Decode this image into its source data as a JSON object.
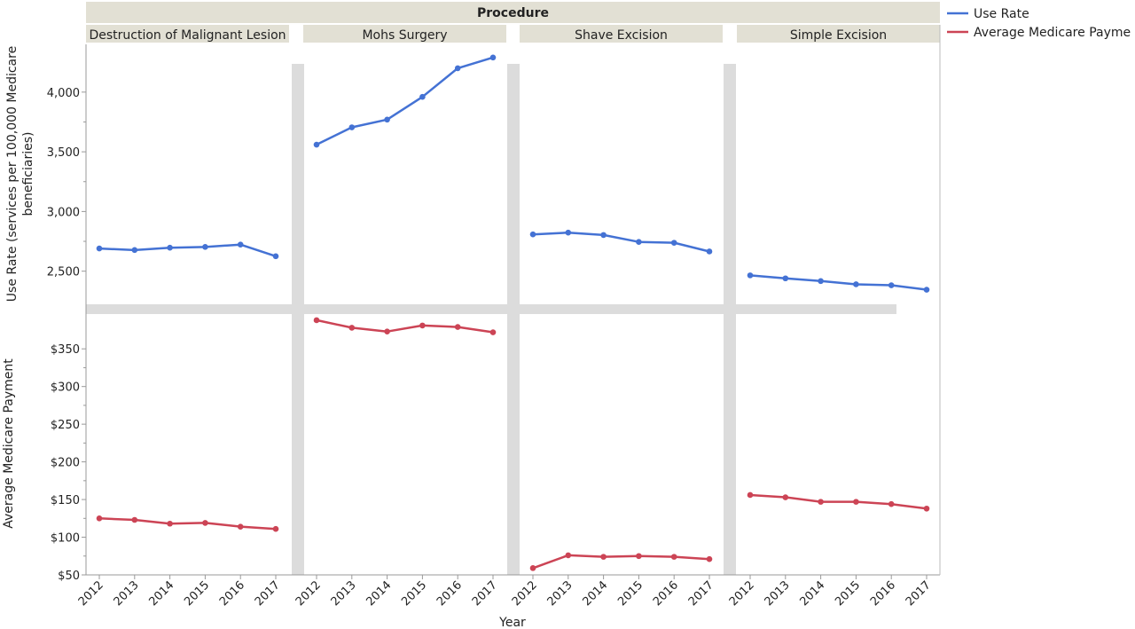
{
  "chart_data": {
    "type": "line",
    "facet_header": "Procedure",
    "panels": [
      "Destruction of Malignant Lesion",
      "Mohs Surgery",
      "Shave Excision",
      "Simple Excision"
    ],
    "x": [
      "2012",
      "2013",
      "2014",
      "2015",
      "2016",
      "2017"
    ],
    "xlabel": "Year",
    "rows": [
      {
        "key": "use",
        "ylabel_lines": [
          "Use Rate (services per 100,000 Medicare",
          "beneficiaries)"
        ],
        "ylim": [
          2230,
          4400
        ],
        "yticks": [
          2500,
          3000,
          3500,
          4000
        ],
        "ytick_labels": [
          "2,500",
          "3,000",
          "3,500",
          "4,000"
        ]
      },
      {
        "key": "pay",
        "ylabel_lines": [
          "Average Medicare Payment"
        ],
        "ylim": [
          50,
          395
        ],
        "yticks": [
          50,
          100,
          150,
          200,
          250,
          300,
          350
        ],
        "ytick_labels": [
          "$50",
          "$100",
          "$150",
          "$200",
          "$250",
          "$300",
          "$350"
        ]
      }
    ],
    "series": [
      {
        "name": "Use Rate",
        "row": "use",
        "color": "#4472d4",
        "values": [
          [
            2690,
            2677,
            2697,
            2703,
            2723,
            2625
          ],
          [
            3560,
            3705,
            3770,
            3960,
            4200,
            4290
          ],
          [
            2808,
            2823,
            2803,
            2745,
            2738,
            2665
          ],
          [
            2465,
            2440,
            2417,
            2390,
            2382,
            2345
          ]
        ]
      },
      {
        "name": "Average Medicare Payme",
        "row": "pay",
        "color": "#cc4455",
        "values": [
          [
            125,
            123,
            118,
            119,
            114,
            111
          ],
          [
            388,
            378,
            373,
            381,
            379,
            372
          ],
          [
            59,
            76,
            74,
            75,
            74,
            71
          ],
          [
            156,
            153,
            147,
            147,
            144,
            138
          ]
        ]
      }
    ],
    "legend_position": "top-right",
    "grid": false
  }
}
